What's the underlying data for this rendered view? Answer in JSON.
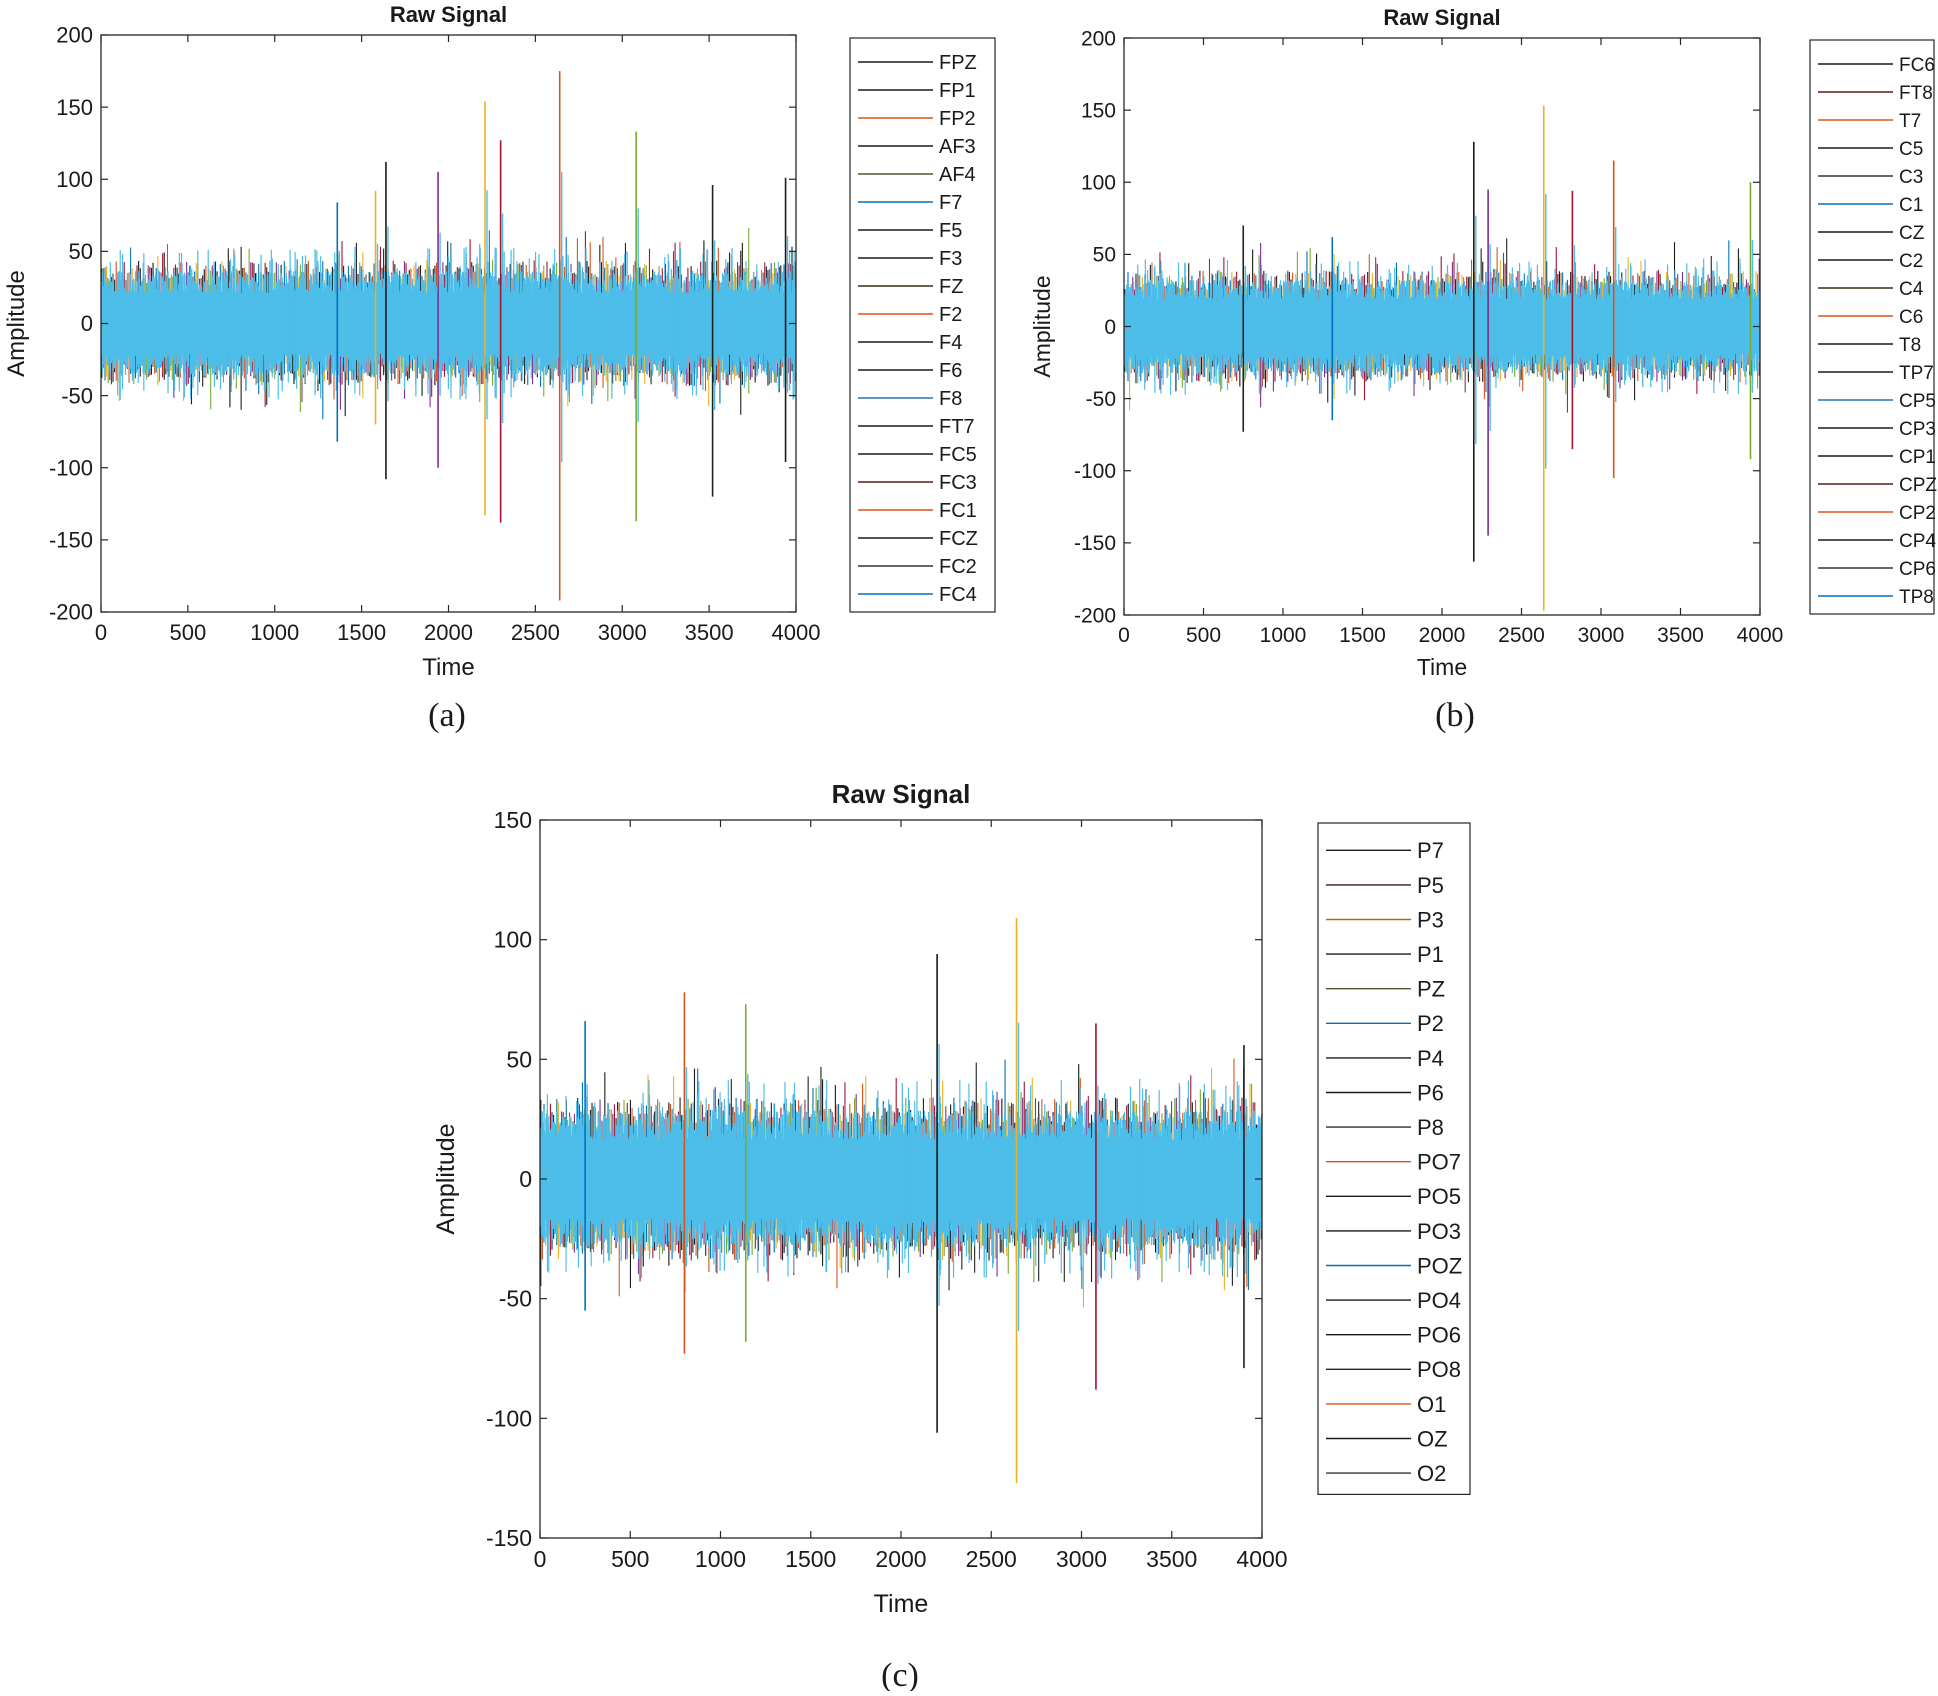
{
  "figure": {
    "captions": [
      "(a)",
      "(b)",
      "(c)"
    ]
  },
  "colors": {
    "base": "#4dbde9",
    "palette": [
      "#1a1a1a",
      "#d95319",
      "#0072bd",
      "#edb120",
      "#77ac30",
      "#7e2f8e",
      "#a2142f",
      "#222222"
    ]
  },
  "chart_data": [
    {
      "type": "line",
      "title": "Raw Signal",
      "xlabel": "Time",
      "ylabel": "Amplitude",
      "xlim": [
        0,
        4000
      ],
      "ylim": [
        -200,
        200
      ],
      "xticks": [
        0,
        500,
        1000,
        1500,
        2000,
        2500,
        3000,
        3500,
        4000
      ],
      "xtick_labels": [
        "0",
        "500",
        "1000",
        "1500",
        "2000",
        "2500",
        "3000",
        "3500",
        "4000"
      ],
      "yticks": [
        200,
        150,
        100,
        50,
        0,
        -50,
        -100,
        -150,
        -200
      ],
      "ytick_labels": [
        "200",
        "150",
        "100",
        "50",
        "0",
        "-50",
        "-100",
        "-150",
        "-200"
      ],
      "band": [
        -28,
        28
      ],
      "legend_position": "outside-right",
      "series": [
        {
          "name": "FPZ",
          "color": "#1a1a1a"
        },
        {
          "name": "FP1",
          "color": "#1a1a1a"
        },
        {
          "name": "FP2",
          "color": "#d95319"
        },
        {
          "name": "AF3",
          "color": "#1a1a1a"
        },
        {
          "name": "AF4",
          "color": "#4a5a2a"
        },
        {
          "name": "F7",
          "color": "#0072bd"
        },
        {
          "name": "F5",
          "color": "#1a1a1a"
        },
        {
          "name": "F3",
          "color": "#1a1a1a"
        },
        {
          "name": "FZ",
          "color": "#3a2a1a"
        },
        {
          "name": "F2",
          "color": "#d95319"
        },
        {
          "name": "F4",
          "color": "#1a1a1a"
        },
        {
          "name": "F6",
          "color": "#1a1a1a"
        },
        {
          "name": "F8",
          "color": "#1f77b4"
        },
        {
          "name": "FT7",
          "color": "#1a1a1a"
        },
        {
          "name": "FC5",
          "color": "#1a1a1a"
        },
        {
          "name": "FC3",
          "color": "#5a1a1a"
        },
        {
          "name": "FC1",
          "color": "#d95319"
        },
        {
          "name": "FCZ",
          "color": "#1a1a1a"
        },
        {
          "name": "FC2",
          "color": "#2a3a2a"
        },
        {
          "name": "FC4",
          "color": "#0072bd"
        }
      ],
      "spikes": [
        [
          1640,
          112,
          -108
        ],
        [
          2210,
          154,
          -133
        ],
        [
          2300,
          127,
          -138
        ],
        [
          2640,
          175,
          -192
        ],
        [
          3080,
          133,
          -137
        ],
        [
          3520,
          96,
          -120
        ],
        [
          1360,
          84,
          -82
        ],
        [
          1940,
          105,
          -100
        ],
        [
          3940,
          101,
          -96
        ],
        [
          1580,
          92,
          -70
        ]
      ]
    },
    {
      "type": "line",
      "title": "Raw Signal",
      "xlabel": "Time",
      "ylabel": "Amplitude",
      "xlim": [
        0,
        4000
      ],
      "ylim": [
        -200,
        200
      ],
      "xticks": [
        0,
        500,
        1000,
        1500,
        2000,
        2500,
        3000,
        3500,
        4000
      ],
      "xtick_labels": [
        "0",
        "500",
        "1000",
        "1500",
        "2000",
        "2500",
        "3000",
        "3500",
        "4000"
      ],
      "yticks": [
        200,
        150,
        100,
        50,
        0,
        -50,
        -100,
        -150,
        -200
      ],
      "ytick_labels": [
        "200",
        "150",
        "100",
        "50",
        "0",
        "-50",
        "-100",
        "-150",
        "-200"
      ],
      "band": [
        -25,
        25
      ],
      "legend_position": "outside-right",
      "series": [
        {
          "name": "FC6",
          "color": "#1a1a1a"
        },
        {
          "name": "FT8",
          "color": "#5a1a1a"
        },
        {
          "name": "T7",
          "color": "#d95319"
        },
        {
          "name": "C5",
          "color": "#1a1a1a"
        },
        {
          "name": "C3",
          "color": "#2a3a2a"
        },
        {
          "name": "C1",
          "color": "#0072bd"
        },
        {
          "name": "CZ",
          "color": "#1a1a1a"
        },
        {
          "name": "C2",
          "color": "#1a1a1a"
        },
        {
          "name": "C4",
          "color": "#3a2a1a"
        },
        {
          "name": "C6",
          "color": "#d95319"
        },
        {
          "name": "T8",
          "color": "#1a1a1a"
        },
        {
          "name": "TP7",
          "color": "#1a1a1a"
        },
        {
          "name": "CP5",
          "color": "#1f77b4"
        },
        {
          "name": "CP3",
          "color": "#1a1a1a"
        },
        {
          "name": "CP1",
          "color": "#1a1a1a"
        },
        {
          "name": "CPZ",
          "color": "#5a1a1a"
        },
        {
          "name": "CP2",
          "color": "#d95319"
        },
        {
          "name": "CP4",
          "color": "#1a1a1a"
        },
        {
          "name": "CP6",
          "color": "#2a3a2a"
        },
        {
          "name": "TP8",
          "color": "#0072bd"
        }
      ],
      "spikes": [
        [
          2200,
          128,
          -163
        ],
        [
          2640,
          153,
          -197
        ],
        [
          2820,
          94,
          -85
        ],
        [
          3080,
          115,
          -105
        ],
        [
          3940,
          100,
          -92
        ],
        [
          750,
          70,
          -73
        ],
        [
          1310,
          62,
          -65
        ],
        [
          2290,
          95,
          -145
        ]
      ]
    },
    {
      "type": "line",
      "title": "Raw Signal",
      "xlabel": "Time",
      "ylabel": "Amplitude",
      "xlim": [
        0,
        4000
      ],
      "ylim": [
        -150,
        150
      ],
      "xticks": [
        0,
        500,
        1000,
        1500,
        2000,
        2500,
        3000,
        3500,
        4000
      ],
      "xtick_labels": [
        "0",
        "500",
        "1000",
        "1500",
        "2000",
        "2500",
        "3000",
        "3500",
        "4000"
      ],
      "yticks": [
        150,
        100,
        50,
        0,
        -50,
        -100,
        -150
      ],
      "ytick_labels": [
        "150",
        "100",
        "50",
        "0",
        "-50",
        "-100",
        "-150"
      ],
      "band": [
        -22,
        22
      ],
      "legend_position": "outside-right",
      "series": [
        {
          "name": "P7",
          "color": "#1a1a1a"
        },
        {
          "name": "P5",
          "color": "#3a1a1a"
        },
        {
          "name": "P3",
          "color": "#b8651a"
        },
        {
          "name": "P1",
          "color": "#1a1a1a"
        },
        {
          "name": "PZ",
          "color": "#4a5a2a"
        },
        {
          "name": "P2",
          "color": "#0072bd"
        },
        {
          "name": "P4",
          "color": "#1a1a1a"
        },
        {
          "name": "P6",
          "color": "#1a1a1a"
        },
        {
          "name": "P8",
          "color": "#3a2a1a"
        },
        {
          "name": "PO7",
          "color": "#d95319"
        },
        {
          "name": "PO5",
          "color": "#1a1a1a"
        },
        {
          "name": "PO3",
          "color": "#1a1a1a"
        },
        {
          "name": "POZ",
          "color": "#0072bd"
        },
        {
          "name": "PO4",
          "color": "#1a1a1a"
        },
        {
          "name": "PO6",
          "color": "#1a1a1a"
        },
        {
          "name": "PO8",
          "color": "#3a1a1a"
        },
        {
          "name": "O1",
          "color": "#d95319"
        },
        {
          "name": "OZ",
          "color": "#1a1a1a"
        },
        {
          "name": "O2",
          "color": "#2a3a2a"
        }
      ],
      "spikes": [
        [
          2200,
          94,
          -106
        ],
        [
          2640,
          109,
          -127
        ],
        [
          3080,
          65,
          -88
        ],
        [
          800,
          78,
          -73
        ],
        [
          1140,
          73,
          -68
        ],
        [
          3900,
          56,
          -79
        ],
        [
          250,
          66,
          -55
        ]
      ]
    }
  ]
}
